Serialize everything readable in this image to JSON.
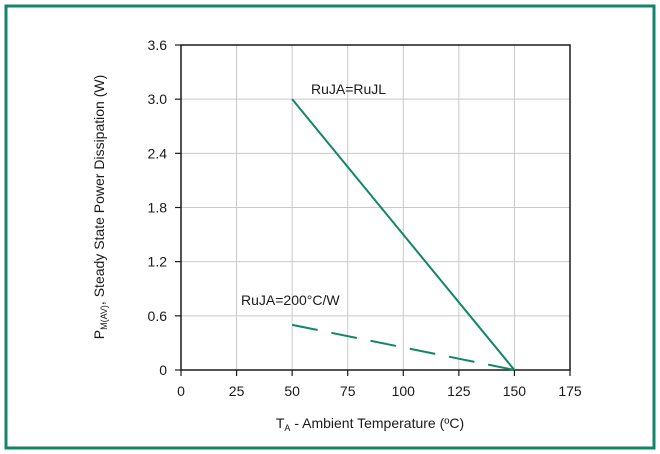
{
  "colors": {
    "border": "#13866a",
    "line": "#13866a",
    "grid": "#c9c9c9",
    "axis": "#1a1a1a"
  },
  "chart_data": {
    "type": "line",
    "xlabel": {
      "main": "T",
      "sub": "A",
      "rest": " - Ambient Temperature (ºC)"
    },
    "ylabel": {
      "main": "P",
      "sub": "M(AV)",
      "rest": ", Steady State Power Dissipation (W)"
    },
    "xlim": [
      0,
      175
    ],
    "ylim": [
      0,
      3.6
    ],
    "xticks": [
      "0",
      "25",
      "50",
      "75",
      "100",
      "125",
      "150",
      "175"
    ],
    "yticks": [
      "0",
      "0.6",
      "1.2",
      "1.8",
      "2.4",
      "3.0",
      "3.6"
    ],
    "grid": true,
    "series": [
      {
        "name": "RuJA=RuJL",
        "style": "solid",
        "x": [
          50,
          150
        ],
        "y": [
          3.0,
          0
        ]
      },
      {
        "name": "RuJA=200°C/W",
        "style": "dashed",
        "x": [
          50,
          150
        ],
        "y": [
          0.5,
          0
        ]
      }
    ]
  }
}
